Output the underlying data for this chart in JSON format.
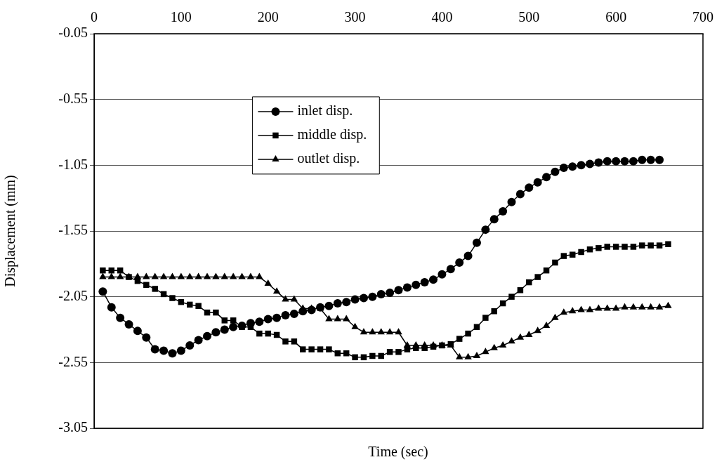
{
  "chart_data": {
    "type": "line",
    "xlabel": "Time (sec)",
    "ylabel": "Displacement (mm)",
    "x": [
      10,
      20,
      30,
      40,
      50,
      60,
      70,
      80,
      90,
      100,
      110,
      120,
      130,
      140,
      150,
      160,
      170,
      180,
      190,
      200,
      210,
      220,
      230,
      240,
      250,
      260,
      270,
      280,
      290,
      300,
      310,
      320,
      330,
      340,
      350,
      360,
      370,
      380,
      390,
      400,
      410,
      420,
      430,
      440,
      450,
      460,
      470,
      480,
      490,
      500,
      510,
      520,
      530,
      540,
      550,
      560,
      570,
      580,
      590,
      600,
      610,
      620,
      630,
      640,
      650,
      660
    ],
    "series": [
      {
        "name": "inlet disp.",
        "color": "#000000",
        "marker": "circle",
        "x": [
          10,
          20,
          30,
          40,
          50,
          60,
          70,
          80,
          90,
          100,
          110,
          120,
          130,
          140,
          150,
          160,
          170,
          180,
          190,
          200,
          210,
          220,
          230,
          240,
          250,
          260,
          270,
          280,
          290,
          300,
          310,
          320,
          330,
          340,
          350,
          360,
          370,
          380,
          390,
          400,
          410,
          420,
          430,
          440,
          450,
          460,
          470,
          480,
          490,
          500,
          510,
          520,
          530,
          540,
          550,
          560,
          570,
          580,
          590,
          600,
          610,
          620,
          630,
          640,
          650
        ],
        "values": [
          -2.01,
          -2.13,
          -2.21,
          -2.26,
          -2.31,
          -2.36,
          -2.45,
          -2.46,
          -2.48,
          -2.46,
          -2.42,
          -2.38,
          -2.35,
          -2.32,
          -2.3,
          -2.28,
          -2.27,
          -2.25,
          -2.24,
          -2.22,
          -2.21,
          -2.19,
          -2.18,
          -2.16,
          -2.15,
          -2.13,
          -2.12,
          -2.1,
          -2.09,
          -2.07,
          -2.06,
          -2.05,
          -2.03,
          -2.02,
          -2.0,
          -1.98,
          -1.96,
          -1.94,
          -1.92,
          -1.88,
          -1.84,
          -1.79,
          -1.74,
          -1.64,
          -1.54,
          -1.46,
          -1.4,
          -1.33,
          -1.27,
          -1.22,
          -1.18,
          -1.14,
          -1.1,
          -1.07,
          -1.06,
          -1.05,
          -1.04,
          -1.03,
          -1.02,
          -1.02,
          -1.02,
          -1.02,
          -1.01,
          -1.01,
          -1.01
        ]
      },
      {
        "name": "middle disp.",
        "color": "#000000",
        "marker": "square",
        "values": [
          -1.85,
          -1.85,
          -1.85,
          -1.9,
          -1.93,
          -1.96,
          -1.99,
          -2.03,
          -2.06,
          -2.09,
          -2.11,
          -2.12,
          -2.17,
          -2.17,
          -2.23,
          -2.23,
          -2.28,
          -2.28,
          -2.33,
          -2.33,
          -2.34,
          -2.39,
          -2.39,
          -2.45,
          -2.45,
          -2.45,
          -2.45,
          -2.48,
          -2.48,
          -2.51,
          -2.51,
          -2.5,
          -2.5,
          -2.47,
          -2.47,
          -2.45,
          -2.44,
          -2.44,
          -2.43,
          -2.42,
          -2.41,
          -2.37,
          -2.33,
          -2.28,
          -2.21,
          -2.16,
          -2.1,
          -2.05,
          -2.0,
          -1.94,
          -1.9,
          -1.85,
          -1.79,
          -1.74,
          -1.73,
          -1.71,
          -1.69,
          -1.68,
          -1.67,
          -1.67,
          -1.67,
          -1.67,
          -1.66,
          -1.66,
          -1.66,
          -1.65
        ]
      },
      {
        "name": "outlet disp.",
        "color": "#000000",
        "marker": "triangle",
        "values": [
          -1.9,
          -1.9,
          -1.9,
          -1.9,
          -1.9,
          -1.9,
          -1.9,
          -1.9,
          -1.9,
          -1.9,
          -1.9,
          -1.9,
          -1.9,
          -1.9,
          -1.9,
          -1.9,
          -1.9,
          -1.9,
          -1.9,
          -1.95,
          -2.01,
          -2.07,
          -2.07,
          -2.14,
          -2.14,
          -2.14,
          -2.22,
          -2.22,
          -2.22,
          -2.28,
          -2.32,
          -2.32,
          -2.32,
          -2.32,
          -2.32,
          -2.42,
          -2.42,
          -2.42,
          -2.42,
          -2.42,
          -2.42,
          -2.51,
          -2.51,
          -2.5,
          -2.47,
          -2.44,
          -2.42,
          -2.39,
          -2.36,
          -2.34,
          -2.31,
          -2.27,
          -2.21,
          -2.17,
          -2.16,
          -2.15,
          -2.15,
          -2.14,
          -2.14,
          -2.14,
          -2.13,
          -2.13,
          -2.13,
          -2.13,
          -2.13,
          -2.12
        ]
      }
    ],
    "xlim": [
      0,
      700
    ],
    "xticks": [
      0,
      100,
      200,
      300,
      400,
      500,
      600,
      700
    ],
    "ylim": [
      -3.05,
      -0.05
    ],
    "yticks": [
      -3.05,
      -2.55,
      -2.05,
      -1.55,
      -1.05,
      -0.55,
      -0.05
    ],
    "grid": "y",
    "legend": "top",
    "line_style": "solid"
  }
}
